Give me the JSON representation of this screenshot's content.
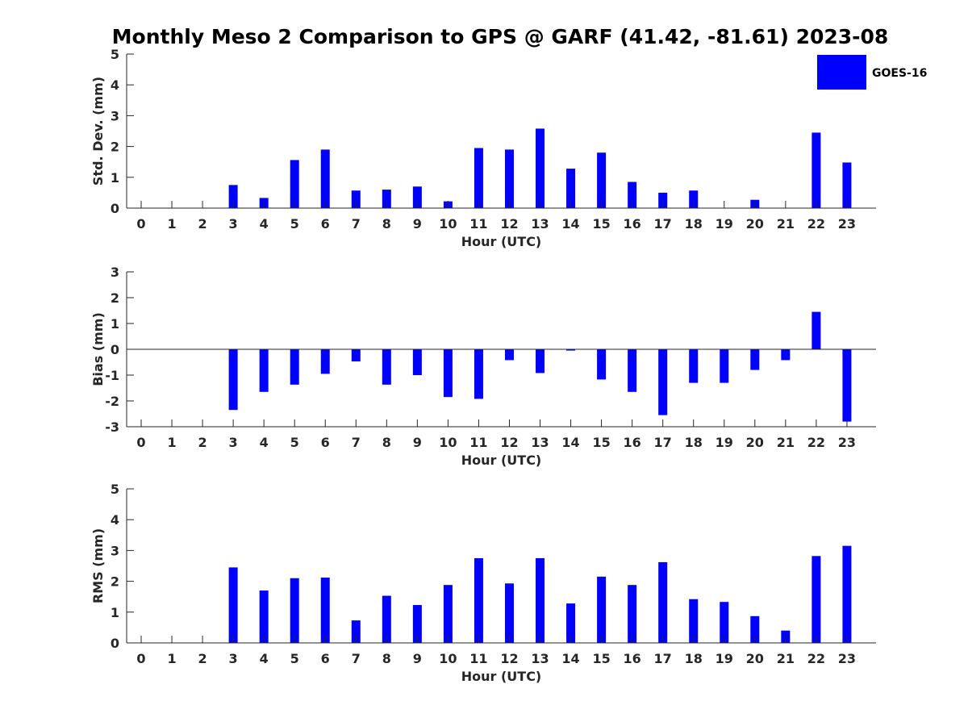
{
  "figure_title": "Monthly Meso 2 Comparison to GPS @ GARF (41.42, -81.61) 2023-08",
  "legend": {
    "label": "GOES-16",
    "color": "#0000ff",
    "placement": "top-right"
  },
  "bar_color": "#0000ff",
  "chart_data": [
    {
      "type": "bar",
      "name": "std_dev",
      "xlabel": "Hour (UTC)",
      "ylabel": "Std. Dev. (mm)",
      "ylim": [
        0,
        5
      ],
      "yticks": [
        0,
        1,
        2,
        3,
        4,
        5
      ],
      "categories": [
        "0",
        "1",
        "2",
        "3",
        "4",
        "5",
        "6",
        "7",
        "8",
        "9",
        "10",
        "11",
        "12",
        "13",
        "14",
        "15",
        "16",
        "17",
        "18",
        "19",
        "20",
        "21",
        "22",
        "23"
      ],
      "values": [
        0,
        0,
        0,
        0.75,
        0.33,
        1.56,
        1.9,
        0.57,
        0.6,
        0.7,
        0.22,
        1.95,
        1.9,
        2.58,
        1.28,
        1.8,
        0.85,
        0.5,
        0.57,
        0,
        0.27,
        0,
        2.45,
        1.48
      ],
      "grid": false
    },
    {
      "type": "bar",
      "name": "bias",
      "xlabel": "Hour (UTC)",
      "ylabel": "Bias (mm)",
      "ylim": [
        -3,
        3
      ],
      "yticks": [
        -3,
        -2,
        -1,
        0,
        1,
        2,
        3
      ],
      "categories": [
        "0",
        "1",
        "2",
        "3",
        "4",
        "5",
        "6",
        "7",
        "8",
        "9",
        "10",
        "11",
        "12",
        "13",
        "14",
        "15",
        "16",
        "17",
        "18",
        "19",
        "20",
        "21",
        "22",
        "23"
      ],
      "values": [
        0,
        0,
        0,
        -2.35,
        -1.65,
        -1.37,
        -0.95,
        -0.47,
        -1.37,
        -1.0,
        -1.85,
        -1.92,
        -0.42,
        -0.92,
        -0.05,
        -1.17,
        -1.65,
        -2.55,
        -1.3,
        -1.3,
        -0.8,
        -0.42,
        1.45,
        -2.8
      ],
      "grid": false
    },
    {
      "type": "bar",
      "name": "rms",
      "xlabel": "Hour (UTC)",
      "ylabel": "RMS (mm)",
      "ylim": [
        0,
        5
      ],
      "yticks": [
        0,
        1,
        2,
        3,
        4,
        5
      ],
      "categories": [
        "0",
        "1",
        "2",
        "3",
        "4",
        "5",
        "6",
        "7",
        "8",
        "9",
        "10",
        "11",
        "12",
        "13",
        "14",
        "15",
        "16",
        "17",
        "18",
        "19",
        "20",
        "21",
        "22",
        "23"
      ],
      "values": [
        0,
        0,
        0,
        2.45,
        1.7,
        2.1,
        2.12,
        0.73,
        1.53,
        1.23,
        1.88,
        2.75,
        1.93,
        2.75,
        1.28,
        2.15,
        1.88,
        2.62,
        1.42,
        1.33,
        0.87,
        0.4,
        2.82,
        3.15
      ],
      "grid": false
    }
  ]
}
